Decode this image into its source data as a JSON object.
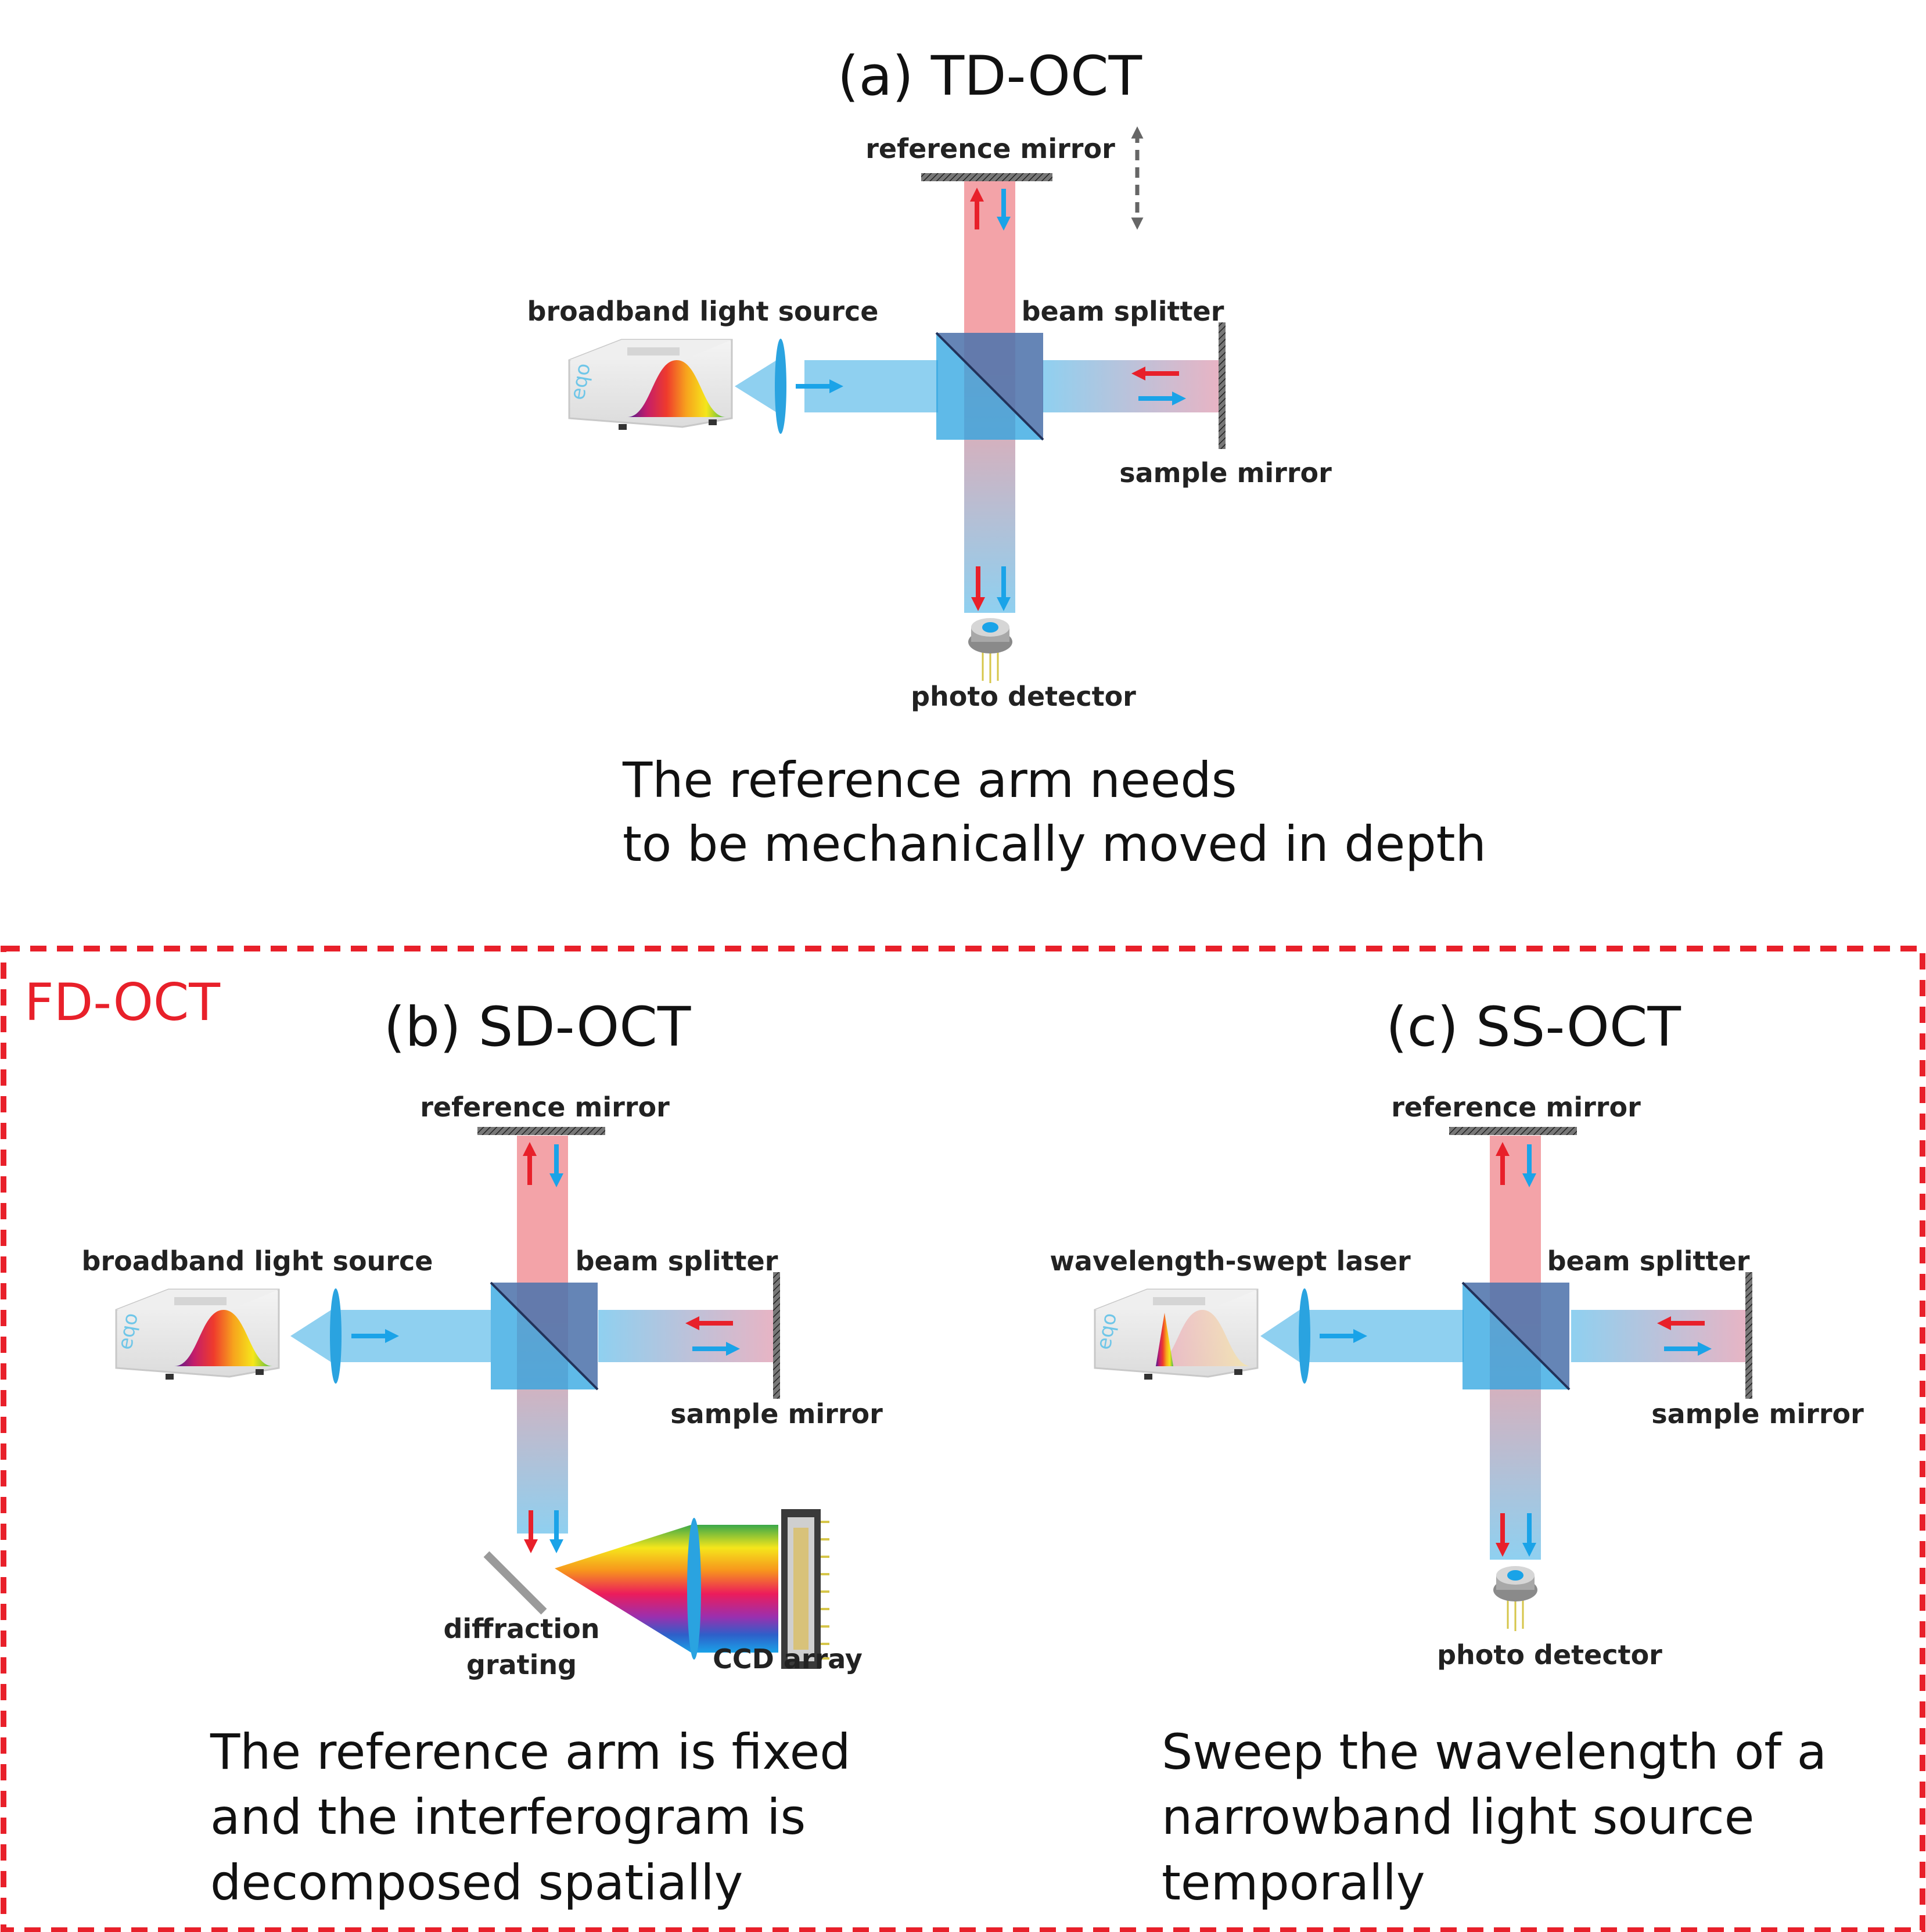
{
  "colors": {
    "accent_red": "#e8202a",
    "accent_blue": "#1aa3e8",
    "beam_blue": "#8fd0f0",
    "beam_red": "#f3a3a8",
    "frame_red": "#e8202a"
  },
  "panel_a": {
    "title": "(a) TD-OCT",
    "labels": {
      "reference_mirror": "reference mirror",
      "light_source": "broadband light source",
      "beam_splitter": "beam splitter",
      "sample_mirror": "sample mirror",
      "detector": "photo detector"
    },
    "caption": [
      "The reference arm needs",
      "to be mechanically moved in depth"
    ]
  },
  "group": {
    "label": "FD-OCT"
  },
  "panel_b": {
    "title": "(b) SD-OCT",
    "labels": {
      "reference_mirror": "reference mirror",
      "light_source": "broadband light source",
      "beam_splitter": "beam splitter",
      "sample_mirror": "sample mirror",
      "grating_line1": "diffraction",
      "grating_line2": "grating",
      "ccd": "CCD array"
    },
    "caption": [
      "The reference arm is fixed",
      "and the interferogram is",
      "decomposed spatially"
    ]
  },
  "panel_c": {
    "title": "(c) SS-OCT",
    "labels": {
      "reference_mirror": "reference mirror",
      "light_source": "wavelength-swept laser",
      "beam_splitter": "beam splitter",
      "sample_mirror": "sample mirror",
      "detector": "photo detector"
    },
    "caption": [
      "Sweep the wavelength of a",
      "narrowband light source",
      "temporally"
    ]
  },
  "icons": [
    "light-source-box-icon",
    "lens-icon",
    "beam-splitter-icon",
    "mirror-icon",
    "photo-detector-icon",
    "diffraction-grating-icon",
    "ccd-array-icon",
    "arrow-icon"
  ]
}
